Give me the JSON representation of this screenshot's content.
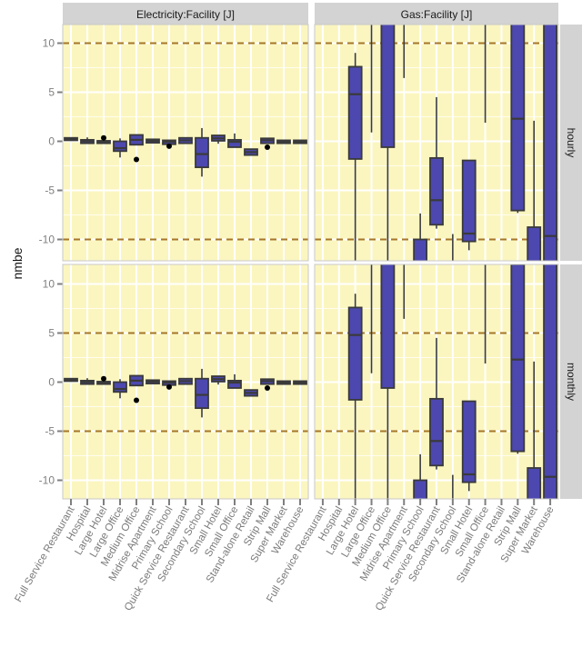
{
  "chart_data": {
    "type": "boxplot",
    "ylabel": "nmbe",
    "xlabel": "",
    "ylim": [
      -12.2,
      11.9
    ],
    "yticks": [
      -10,
      -5,
      0,
      5,
      10
    ],
    "grid": true,
    "facet_cols": [
      "Electricity:Facility [J]",
      "Gas:Facility [J]"
    ],
    "facet_rows": [
      "hourly",
      "monthly"
    ],
    "reference_lines": {
      "hourly": [
        -10,
        10
      ],
      "monthly": [
        -5,
        5
      ]
    },
    "categories": [
      "Full Service Restaurant",
      "Hospital",
      "Large Hotel",
      "Large Office",
      "Medium Office",
      "Midrise Apartment",
      "Primary School",
      "Quick Service Restaurant",
      "Secondary School",
      "Small Hotel",
      "Small Office",
      "Stand-alone Retail",
      "Strip Mall",
      "Super Market",
      "Warehouse"
    ],
    "colors": {
      "box_fill": "#4c48b0",
      "box_outline": "#3a3a3a",
      "panel_bg": "#fbf6bf",
      "reference_line": "#a5772a",
      "strip_bg": "#d3d3d3"
    },
    "panels": {
      "Electricity:Facility [J]": [
        {
          "lower": 0.05,
          "q1": 0.1,
          "median": 0.2,
          "q3": 0.35,
          "upper": 0.4,
          "outliers": []
        },
        {
          "lower": -0.25,
          "q1": -0.2,
          "median": 0.0,
          "q3": 0.15,
          "upper": 0.4,
          "outliers": []
        },
        {
          "lower": -0.25,
          "q1": -0.2,
          "median": -0.05,
          "q3": 0.05,
          "upper": 0.1,
          "outliers": [
            0.35
          ]
        },
        {
          "lower": -1.65,
          "q1": -1.0,
          "median": -0.7,
          "q3": 0.0,
          "upper": 0.3,
          "outliers": []
        },
        {
          "lower": -0.35,
          "q1": -0.35,
          "median": 0.15,
          "q3": 0.65,
          "upper": 0.65,
          "outliers": [
            -1.85
          ]
        },
        {
          "lower": -0.15,
          "q1": -0.15,
          "median": 0.05,
          "q3": 0.2,
          "upper": 0.2,
          "outliers": []
        },
        {
          "lower": -0.3,
          "q1": -0.3,
          "median": -0.05,
          "q3": 0.1,
          "upper": 0.1,
          "outliers": [
            -0.5
          ]
        },
        {
          "lower": -0.25,
          "q1": -0.2,
          "median": 0.1,
          "q3": 0.35,
          "upper": 0.35,
          "outliers": []
        },
        {
          "lower": -3.6,
          "q1": -2.65,
          "median": -1.3,
          "q3": 0.35,
          "upper": 1.35,
          "outliers": []
        },
        {
          "lower": -0.25,
          "q1": 0.05,
          "median": 0.3,
          "q3": 0.6,
          "upper": 0.6,
          "outliers": []
        },
        {
          "lower": -0.6,
          "q1": -0.6,
          "median": -0.05,
          "q3": 0.15,
          "upper": 0.8,
          "outliers": []
        },
        {
          "lower": -1.4,
          "q1": -1.4,
          "median": -1.1,
          "q3": -0.8,
          "upper": -0.8,
          "outliers": []
        },
        {
          "lower": -0.2,
          "q1": -0.2,
          "median": 0.1,
          "q3": 0.3,
          "upper": 0.3,
          "outliers": [
            -0.6
          ]
        },
        {
          "lower": -0.25,
          "q1": -0.2,
          "median": -0.05,
          "q3": 0.1,
          "upper": 0.1,
          "outliers": []
        },
        {
          "lower": -0.2,
          "q1": -0.2,
          "median": -0.05,
          "q3": 0.1,
          "upper": 0.1,
          "outliers": []
        }
      ],
      "Gas:Facility [J]": [
        null,
        null,
        {
          "lower": -15,
          "q1": -1.8,
          "median": 4.8,
          "q3": 7.6,
          "upper": 9.0,
          "outliers": []
        },
        {
          "lower": 0.9,
          "q1": 13,
          "median": 14,
          "q3": 15,
          "upper": 16,
          "outliers": []
        },
        {
          "lower": -15,
          "q1": -0.6,
          "median": 13,
          "q3": 14,
          "upper": 16,
          "outliers": []
        },
        {
          "lower": 6.45,
          "q1": 13,
          "median": 14,
          "q3": 15,
          "upper": 16,
          "outliers": []
        },
        {
          "lower": -16,
          "q1": -14,
          "median": -13,
          "q3": -10.0,
          "upper": -7.35,
          "outliers": []
        },
        {
          "lower": -8.9,
          "q1": -8.5,
          "median": -6.0,
          "q3": -1.7,
          "upper": 4.5,
          "outliers": []
        },
        {
          "lower": -16,
          "q1": -15,
          "median": -14,
          "q3": -13,
          "upper": -9.45,
          "outliers": []
        },
        {
          "lower": -11.1,
          "q1": -10.2,
          "median": -9.4,
          "q3": -1.95,
          "upper": -1.95,
          "outliers": []
        },
        {
          "lower": 1.9,
          "q1": 13,
          "median": 14,
          "q3": 15,
          "upper": 16,
          "outliers": []
        },
        null,
        {
          "lower": -7.3,
          "q1": -7.05,
          "median": 2.3,
          "q3": 12.0,
          "upper": 14,
          "outliers": []
        },
        {
          "lower": -16,
          "q1": -14,
          "median": -13,
          "q3": -8.75,
          "upper": 2.1,
          "outliers": []
        },
        {
          "lower": -16,
          "q1": -14,
          "median": -9.65,
          "q3": 14,
          "upper": 16,
          "outliers": []
        }
      ]
    }
  }
}
